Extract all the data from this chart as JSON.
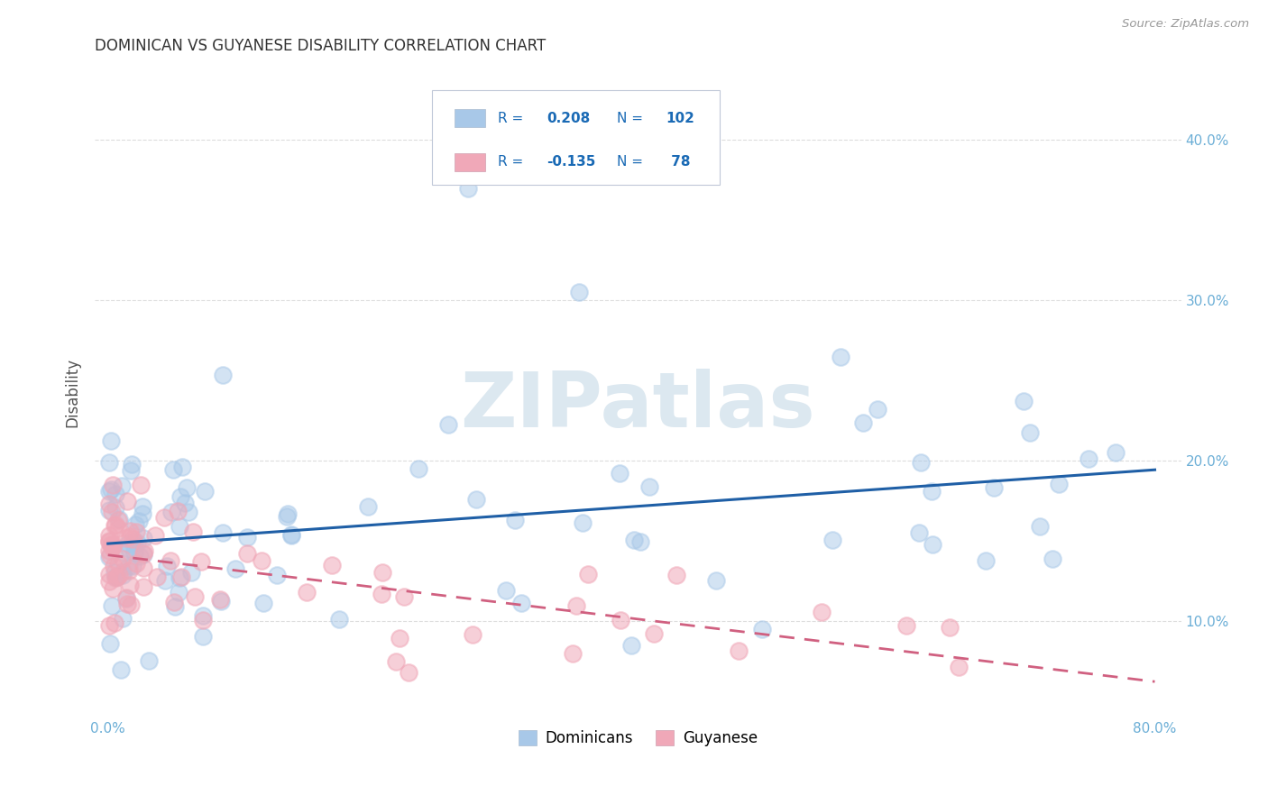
{
  "title": "DOMINICAN VS GUYANESE DISABILITY CORRELATION CHART",
  "source": "Source: ZipAtlas.com",
  "ylabel": "Disability",
  "xlabel_ticks": [
    "0.0%",
    "",
    "",
    "",
    "",
    "",
    "",
    "",
    "80.0%"
  ],
  "ylabel_ticks": [
    "10.0%",
    "20.0%",
    "30.0%",
    "40.0%"
  ],
  "xlim": [
    -0.01,
    0.82
  ],
  "ylim": [
    0.04,
    0.445
  ],
  "dominican_R": 0.208,
  "dominican_N": 102,
  "guyanese_R": -0.135,
  "guyanese_N": 78,
  "blue_scatter_color": "#a8c8e8",
  "pink_scatter_color": "#f0a8b8",
  "blue_line_color": "#1f5fa6",
  "pink_line_color": "#d06080",
  "watermark_color": "#dce8f0",
  "background_color": "#ffffff",
  "grid_color": "#dddddd",
  "title_color": "#333333",
  "axis_label_color": "#555555",
  "tick_color": "#6baed6",
  "legend_text_color": "#1a6ab5",
  "seed": 7
}
